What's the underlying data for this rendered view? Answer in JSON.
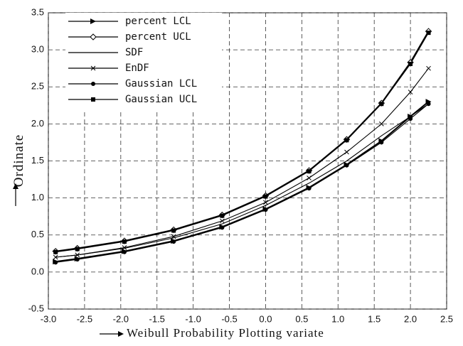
{
  "chart_data": {
    "type": "line",
    "xlabel": "Weibull Probability Plotting variate",
    "ylabel": "Ordinate",
    "x": [
      -2.9,
      -2.6,
      -1.95,
      -1.27,
      -0.6,
      0,
      0.6,
      1.12,
      1.6,
      2.0,
      2.25
    ],
    "series": [
      {
        "name": "percent LCL",
        "color": "#000000",
        "marker": "triangle",
        "values": [
          0.14,
          0.18,
          0.28,
          0.42,
          0.61,
          0.85,
          1.14,
          1.45,
          1.77,
          2.1,
          2.3
        ]
      },
      {
        "name": "percent UCL",
        "color": "#000000",
        "marker": "diamond",
        "values": [
          0.28,
          0.32,
          0.42,
          0.57,
          0.77,
          1.03,
          1.37,
          1.79,
          2.28,
          2.83,
          3.25
        ]
      },
      {
        "name": "SDF",
        "color": "#000000",
        "marker": "none",
        "values": [
          0.2,
          0.23,
          0.32,
          0.46,
          0.65,
          0.9,
          1.2,
          1.5,
          1.84,
          2.1,
          2.27
        ]
      },
      {
        "name": "EnDF",
        "color": "#000000",
        "marker": "cross",
        "values": [
          0.2,
          0.23,
          0.33,
          0.48,
          0.69,
          0.94,
          1.27,
          1.62,
          2.0,
          2.43,
          2.75
        ]
      },
      {
        "name": "Gaussian LCL",
        "color": "#000000",
        "marker": "circle",
        "values": [
          0.13,
          0.17,
          0.27,
          0.41,
          0.6,
          0.84,
          1.13,
          1.44,
          1.75,
          2.07,
          2.27
        ]
      },
      {
        "name": "Gaussian UCL",
        "color": "#000000",
        "marker": "square",
        "values": [
          0.27,
          0.31,
          0.41,
          0.56,
          0.76,
          1.02,
          1.36,
          1.78,
          2.27,
          2.81,
          3.23
        ]
      }
    ],
    "xlim": [
      -3,
      2.5
    ],
    "xticks": [
      {
        "value": -3,
        "label": "-3.0"
      },
      -2.5,
      {
        "value": -2,
        "label": "-2.0"
      },
      -1.5,
      {
        "value": -1,
        "label": "-1.0"
      },
      -0.5,
      {
        "value": 0,
        "label": "0.0"
      },
      0.5,
      {
        "value": 1,
        "label": "1.0"
      },
      1.5,
      {
        "value": 2,
        "label": "2.0"
      },
      2.5
    ],
    "ylim": [
      -0.5,
      3.5
    ],
    "yticks": [
      -0.5,
      {
        "value": 0,
        "label": "0.0"
      },
      0.5,
      {
        "value": 1,
        "label": "1.0"
      },
      1.5,
      {
        "value": 2,
        "label": "2.0"
      },
      2.5,
      {
        "value": 3,
        "label": "3.0"
      },
      3.5
    ],
    "grid": true,
    "legend": "upper left"
  }
}
